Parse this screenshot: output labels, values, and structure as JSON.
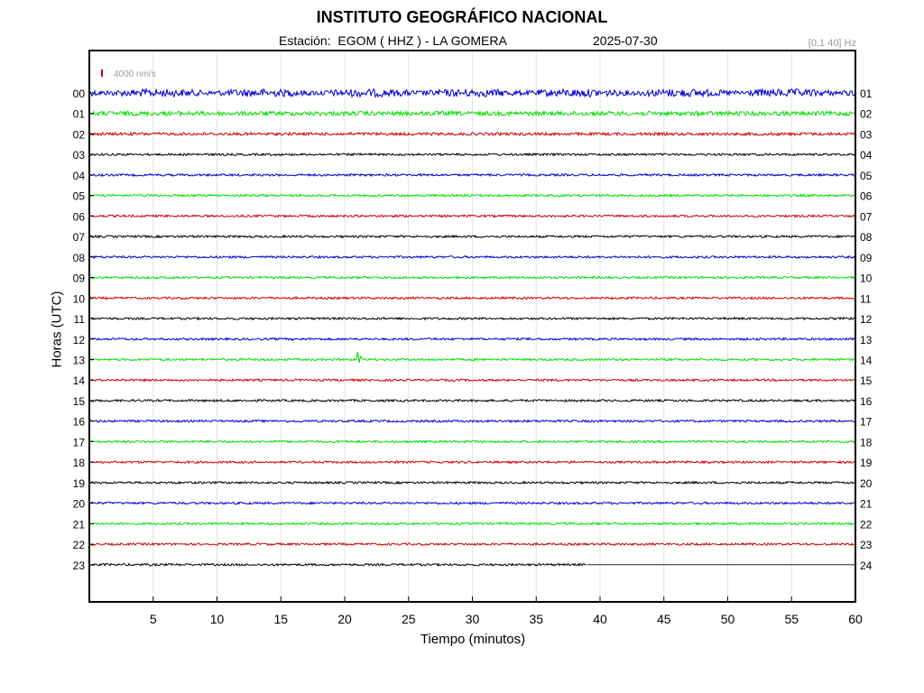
{
  "header": {
    "title": "INSTITUTO GEOGRÁFICO NACIONAL",
    "station_line": "Estación:  EGOM ( HHZ ) - LA GOMERA",
    "date": "2025-07-30",
    "filter": "[0.1 40] Hz"
  },
  "chart_data": {
    "type": "line",
    "title": "INSTITUTO GEOGRÁFICO NACIONAL",
    "xlabel": "Tiempo (minutos)",
    "ylabel": "Horas (UTC)",
    "xlim": [
      0,
      60
    ],
    "x_ticks": [
      "5",
      "10",
      "15",
      "20",
      "25",
      "30",
      "35",
      "40",
      "45",
      "50",
      "55",
      "60"
    ],
    "left_ticks": [
      "00",
      "01",
      "02",
      "03",
      "04",
      "05",
      "06",
      "07",
      "08",
      "09",
      "10",
      "11",
      "12",
      "13",
      "14",
      "15",
      "16",
      "17",
      "18",
      "19",
      "20",
      "21",
      "22",
      "23"
    ],
    "right_ticks": [
      "01",
      "02",
      "03",
      "04",
      "05",
      "06",
      "07",
      "08",
      "09",
      "10",
      "11",
      "12",
      "13",
      "14",
      "15",
      "16",
      "17",
      "18",
      "19",
      "20",
      "21",
      "22",
      "23",
      "24"
    ],
    "scale_label": "4000 nm/s",
    "scale_color": "#cc0000",
    "grid": "vertical",
    "trace_colors": [
      "#0000cc",
      "#00dd00",
      "#cc0000",
      "#000000"
    ],
    "traces": [
      {
        "hour": "00",
        "color": "#0000cc",
        "end_minute": 60
      },
      {
        "hour": "01",
        "color": "#00dd00",
        "end_minute": 60
      },
      {
        "hour": "02",
        "color": "#cc0000",
        "end_minute": 60
      },
      {
        "hour": "03",
        "color": "#000000",
        "end_minute": 60
      },
      {
        "hour": "04",
        "color": "#0000cc",
        "end_minute": 60
      },
      {
        "hour": "05",
        "color": "#00dd00",
        "end_minute": 60
      },
      {
        "hour": "06",
        "color": "#cc0000",
        "end_minute": 60
      },
      {
        "hour": "07",
        "color": "#000000",
        "end_minute": 60
      },
      {
        "hour": "08",
        "color": "#0000cc",
        "end_minute": 60
      },
      {
        "hour": "09",
        "color": "#00dd00",
        "end_minute": 60
      },
      {
        "hour": "10",
        "color": "#cc0000",
        "end_minute": 60
      },
      {
        "hour": "11",
        "color": "#000000",
        "end_minute": 60
      },
      {
        "hour": "12",
        "color": "#0000cc",
        "end_minute": 60
      },
      {
        "hour": "13",
        "color": "#00dd00",
        "end_minute": 60,
        "event_minute": 21
      },
      {
        "hour": "14",
        "color": "#cc0000",
        "end_minute": 60
      },
      {
        "hour": "15",
        "color": "#000000",
        "end_minute": 60
      },
      {
        "hour": "16",
        "color": "#0000cc",
        "end_minute": 60
      },
      {
        "hour": "17",
        "color": "#00dd00",
        "end_minute": 60
      },
      {
        "hour": "18",
        "color": "#cc0000",
        "end_minute": 60
      },
      {
        "hour": "19",
        "color": "#000000",
        "end_minute": 60
      },
      {
        "hour": "20",
        "color": "#0000cc",
        "end_minute": 60
      },
      {
        "hour": "21",
        "color": "#00dd00",
        "end_minute": 60
      },
      {
        "hour": "22",
        "color": "#cc0000",
        "end_minute": 60
      },
      {
        "hour": "23",
        "color": "#000000",
        "end_minute": 39
      }
    ]
  }
}
